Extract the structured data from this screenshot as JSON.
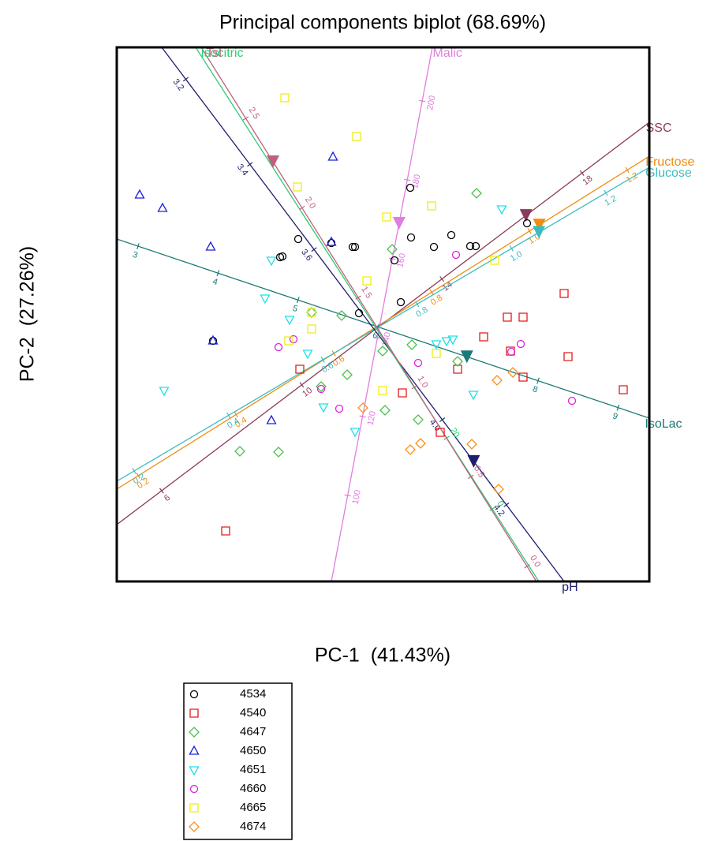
{
  "chart_data": {
    "type": "biplot",
    "title": "Principal components biplot (68.69%)",
    "x_label": "PC-1  (41.43%)",
    "y_label": "PC-2  (27.26%)",
    "xlim": [
      0,
      675
    ],
    "ylim": [
      0,
      677
    ],
    "series": [
      {
        "name": "4534",
        "color": "#000000",
        "marker": "circle",
        "x": [
          372,
          230,
          210,
          207,
          272,
          299,
          302,
          352,
          373,
          402,
          424,
          448,
          455,
          520,
          360,
          307,
          122
        ],
        "y": [
          499,
          434,
          412,
          411,
          429,
          424,
          424,
          407,
          436,
          424,
          439,
          425,
          425,
          454,
          354,
          340,
          305
        ]
      },
      {
        "name": "4540",
        "color": "#e41a1c",
        "marker": "square",
        "x": [
          567,
          495,
          465,
          515,
          499,
          572,
          432,
          515,
          642,
          232,
          362,
          410,
          138
        ],
        "y": [
          365,
          335,
          310,
          335,
          292,
          285,
          269,
          259,
          243,
          269,
          239,
          189,
          64
        ]
      },
      {
        "name": "4647",
        "color": "#4dbf4d",
        "marker": "diamond",
        "x": [
          456,
          349,
          247,
          285,
          337,
          374,
          292,
          259,
          340,
          382,
          205,
          156,
          432
        ],
        "y": [
          492,
          421,
          341,
          337,
          292,
          300,
          262,
          247,
          217,
          205,
          164,
          165,
          279
        ]
      },
      {
        "name": "4650",
        "color": "#2020d8",
        "marker": "triangle-up",
        "x": [
          274,
          29,
          58,
          119,
          272,
          196,
          122
        ],
        "y": [
          538,
          490,
          473,
          424,
          430,
          204,
          305
        ]
      },
      {
        "name": "4651",
        "color": "#22e0e8",
        "marker": "triangle-down",
        "x": [
          488,
          196,
          188,
          219,
          242,
          262,
          302,
          405,
          418,
          426,
          452,
          60
        ],
        "y": [
          472,
          407,
          359,
          332,
          289,
          221,
          190,
          301,
          305,
          307,
          237,
          242
        ]
      },
      {
        "name": "4660",
        "color": "#e020e0",
        "marker": "circle",
        "x": [
          430,
          205,
          224,
          259,
          282,
          382,
          512,
          500,
          577
        ],
        "y": [
          414,
          297,
          307,
          244,
          219,
          277,
          301,
          291,
          229
        ]
      },
      {
        "name": "4665",
        "color": "#eeee10",
        "marker": "square",
        "x": [
          213,
          304,
          229,
          399,
          342,
          479,
          317,
          247,
          218,
          247,
          405,
          337
        ],
        "y": [
          613,
          564,
          500,
          476,
          462,
          407,
          381,
          341,
          305,
          320,
          289,
          242
        ]
      },
      {
        "name": "4674",
        "color": "#f5901e",
        "marker": "diamond",
        "x": [
          312,
          372,
          385,
          450,
          484,
          482,
          502
        ],
        "y": [
          220,
          167,
          175,
          174,
          117,
          255,
          265
        ]
      }
    ],
    "variables": [
      {
        "name": "SSC",
        "color": "#8b3a5a",
        "line": [
          [
            0,
            72
          ],
          [
            675,
            582
          ]
        ],
        "range": [
          4.72,
          19.92
        ],
        "ticks": [
          6,
          10,
          14,
          18
        ],
        "arrow": 16.4
      },
      {
        "name": "Fructose",
        "color": "#f08c10",
        "line": [
          [
            0,
            117
          ],
          [
            675,
            539
          ]
        ],
        "range": [
          0.156,
          1.245
        ],
        "ticks": [
          0.2,
          0.4,
          0.6,
          0.8,
          {
            "value": 1,
            "label": "1.0"
          },
          1.2
        ],
        "arrow": 1.02
      },
      {
        "name": "Glucose",
        "color": "#3cbcbc",
        "line": [
          [
            0,
            127
          ],
          [
            675,
            525
          ]
        ],
        "range": [
          0.163,
          1.292
        ],
        "ticks": [
          0.2,
          0.4,
          0.6,
          0.8,
          {
            "value": 1,
            "label": "1.0"
          },
          1.2
        ],
        "arrow": 1.058
      },
      {
        "name": "IsoLac",
        "color": "#1a7a78",
        "line": [
          [
            0,
            434
          ],
          [
            675,
            207
          ]
        ],
        "range": [
          2.734,
          9.39
        ],
        "ticks": [
          3,
          4,
          5,
          6,
          8,
          9
        ],
        "arrow": 7.11
      },
      {
        "name": "Malic",
        "color": "#e07ee0",
        "line": [
          [
            272,
            0
          ],
          [
            400,
            677
          ]
        ],
        "range": [
          78.2,
          213.6
        ],
        "ticks": [
          100,
          120,
          140,
          160,
          180,
          200
        ],
        "arrow": 169
      },
      {
        "name": "pH",
        "color": "#1e1e6e",
        "line": [
          [
            57,
            677
          ],
          [
            567,
            0
          ]
        ],
        "range": [
          3.125,
          4.38
        ],
        "ticks": [
          3.2,
          3.4,
          3.6,
          {
            "value": 4,
            "label": "4.0"
          },
          4.2
        ],
        "arrow": 4.098
      },
      {
        "name": "Isocitric",
        "color": "#2ecc71",
        "line": [
          [
            535,
            0
          ],
          [
            100,
            677
          ]
        ],
        "range": [
          -20.4,
          130
        ],
        "ticks": [
          0,
          20
        ]
      },
      {
        "name": "Tsl",
        "color": "#c06080",
        "line": [
          [
            532,
            0
          ],
          [
            107,
            677
          ]
        ],
        "range": [
          -0.084,
          2.896
        ],
        "ticks": [
          {
            "value": 0,
            "label": "0.0"
          },
          0.5,
          {
            "value": 1,
            "label": "1.0"
          },
          1.5,
          {
            "value": 2,
            "label": "2.0"
          },
          2.5
        ],
        "arrow": 2.258
      }
    ]
  }
}
